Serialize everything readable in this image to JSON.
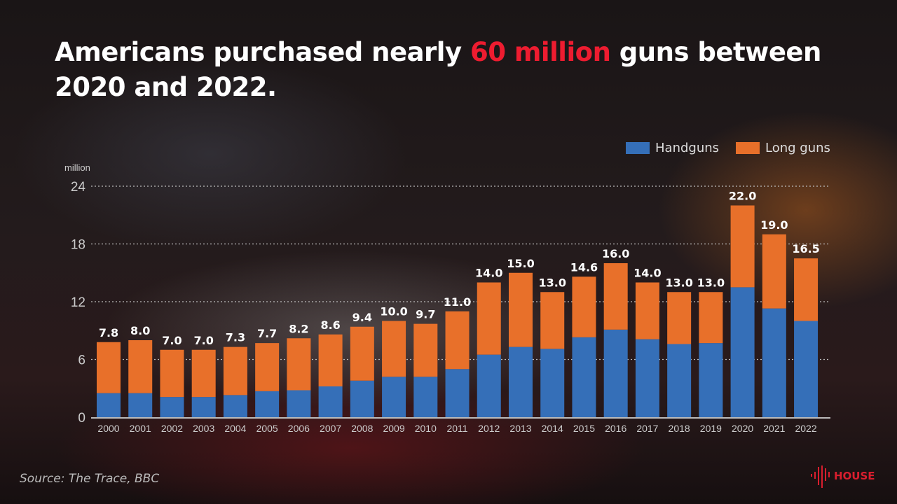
{
  "title": {
    "pre": "Americans purchased nearly ",
    "highlight": "60 million",
    "post": " guns between 2020 and 2022."
  },
  "source": "Source: The Trace, BBC",
  "logo_text": "HOUSE",
  "colors": {
    "handguns": "#356fb8",
    "long_guns": "#e8702a",
    "highlight": "#ee1c30"
  },
  "chart_data": {
    "type": "bar",
    "stacked": true,
    "ylabel": "million",
    "ylim": [
      0,
      24
    ],
    "yticks": [
      0,
      6,
      12,
      18,
      24
    ],
    "grid": true,
    "legend_position": "top-right",
    "categories": [
      "2000",
      "2001",
      "2002",
      "2003",
      "2004",
      "2005",
      "2006",
      "2007",
      "2008",
      "2009",
      "2010",
      "2011",
      "2012",
      "2013",
      "2014",
      "2015",
      "2016",
      "2017",
      "2018",
      "2019",
      "2020",
      "2021",
      "2022"
    ],
    "totals": [
      7.8,
      8.0,
      7.0,
      7.0,
      7.3,
      7.7,
      8.2,
      8.6,
      9.4,
      10.0,
      9.7,
      11.0,
      14.0,
      15.0,
      13.0,
      14.6,
      16.0,
      14.0,
      13.0,
      13.0,
      22.0,
      19.0,
      16.5
    ],
    "total_labels": [
      "7.8",
      "8.0",
      "7.0",
      "7.0",
      "7.3",
      "7.7",
      "8.2",
      "8.6",
      "9.4",
      "10.0",
      "9.7",
      "11.0",
      "14.0",
      "15.0",
      "13.0",
      "14.6",
      "16.0",
      "14.0",
      "13.0",
      "13.0",
      "22.0",
      "19.0",
      "16.5"
    ],
    "series": [
      {
        "name": "Handguns",
        "values": [
          2.5,
          2.5,
          2.1,
          2.1,
          2.3,
          2.7,
          2.8,
          3.2,
          3.8,
          4.2,
          4.2,
          5.0,
          6.5,
          7.3,
          7.1,
          8.3,
          9.1,
          8.1,
          7.6,
          7.7,
          13.5,
          11.3,
          10.0
        ]
      },
      {
        "name": "Long guns",
        "values": [
          5.3,
          5.5,
          4.9,
          4.9,
          5.0,
          5.0,
          5.4,
          5.4,
          5.6,
          5.8,
          5.5,
          6.0,
          7.5,
          7.7,
          5.9,
          6.3,
          6.9,
          5.9,
          5.4,
          5.3,
          8.5,
          7.7,
          6.5
        ]
      }
    ]
  }
}
